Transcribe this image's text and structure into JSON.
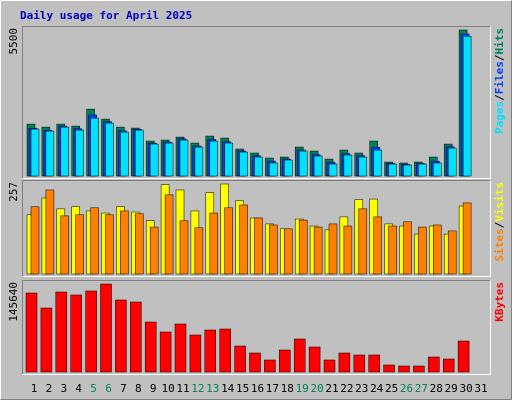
{
  "chart_data": [
    {
      "type": "bar",
      "title": "Daily usage for April 2025",
      "ylim": [
        0,
        5500
      ],
      "yticks": [
        5500
      ],
      "series": [
        {
          "name": "Hits",
          "color": "#00805c",
          "values": [
            1955,
            1842,
            1955,
            1880,
            2519,
            2143,
            1842,
            1805,
            1316,
            1354,
            1466,
            1241,
            1504,
            1429,
            1015,
            865,
            677,
            714,
            1090,
            940,
            639,
            978,
            865,
            1316,
            526,
            489,
            526,
            714,
            1203,
            5500,
            0
          ]
        },
        {
          "name": "Files",
          "color": "#0040ff",
          "values": [
            1800,
            1720,
            1880,
            1780,
            2300,
            2050,
            1700,
            1760,
            1240,
            1280,
            1400,
            1130,
            1380,
            1290,
            940,
            760,
            560,
            640,
            980,
            800,
            520,
            840,
            760,
            1080,
            480,
            440,
            480,
            560,
            1100,
            5350,
            0
          ]
        },
        {
          "name": "Pages",
          "color": "#00e0ff",
          "values": [
            1767,
            1692,
            1842,
            1730,
            2181,
            1993,
            1654,
            1730,
            1203,
            1241,
            1354,
            1090,
            1316,
            1241,
            902,
            714,
            489,
            602,
            940,
            752,
            451,
            790,
            714,
            978,
            451,
            414,
            451,
            489,
            1053,
            5264,
            0
          ]
        }
      ],
      "legend_order": [
        2,
        1,
        0
      ],
      "legend_separator": "/"
    },
    {
      "type": "bar",
      "ylim": [
        0,
        257
      ],
      "yticks": [
        257
      ],
      "series": [
        {
          "name": "Visits",
          "color": "#ffff00",
          "values": [
            169,
            217,
            186,
            192,
            180,
            174,
            192,
            177,
            152,
            255,
            240,
            180,
            232,
            257,
            209,
            160,
            143,
            129,
            157,
            137,
            126,
            163,
            212,
            214,
            143,
            137,
            114,
            137,
            114,
            194,
            0
          ]
        },
        {
          "name": "Sites",
          "color": "#ff8000",
          "values": [
            192,
            240,
            166,
            169,
            189,
            169,
            180,
            172,
            134,
            226,
            152,
            132,
            174,
            189,
            197,
            160,
            140,
            129,
            154,
            134,
            143,
            137,
            186,
            163,
            137,
            149,
            134,
            140,
            123,
            203,
            0
          ]
        }
      ],
      "legend_order": [
        1,
        0
      ],
      "legend_separator": "/"
    },
    {
      "type": "bar",
      "ylim": [
        0,
        145640
      ],
      "yticks": [
        145640
      ],
      "series": [
        {
          "name": "KBytes",
          "color": "#ff0000",
          "values": [
            130745,
            105920,
            132400,
            127435,
            134055,
            145640,
            119160,
            115850,
            82750,
            66200,
            79440,
            61235,
            69510,
            71165,
            43030,
            31445,
            19860,
            36410,
            54615,
            41375,
            19860,
            31445,
            28135,
            28135,
            11585,
            9930,
            9930,
            24825,
            21515,
            51305,
            0
          ]
        }
      ],
      "legend_order": [
        0
      ],
      "categories": [
        "1",
        "2",
        "3",
        "4",
        "5",
        "6",
        "7",
        "8",
        "9",
        "10",
        "11",
        "12",
        "13",
        "14",
        "15",
        "16",
        "17",
        "18",
        "19",
        "20",
        "21",
        "22",
        "23",
        "24",
        "25",
        "26",
        "27",
        "28",
        "29",
        "30",
        "31"
      ],
      "category_colors": [
        "#000000",
        "#000000",
        "#000000",
        "#000000",
        "#00805c",
        "#00805c",
        "#000000",
        "#000000",
        "#000000",
        "#000000",
        "#000000",
        "#00805c",
        "#00805c",
        "#000000",
        "#000000",
        "#000000",
        "#000000",
        "#000000",
        "#00805c",
        "#00805c",
        "#000000",
        "#000000",
        "#000000",
        "#000000",
        "#000000",
        "#00805c",
        "#00805c",
        "#000000",
        "#000000",
        "#000000",
        "#000000"
      ]
    }
  ]
}
